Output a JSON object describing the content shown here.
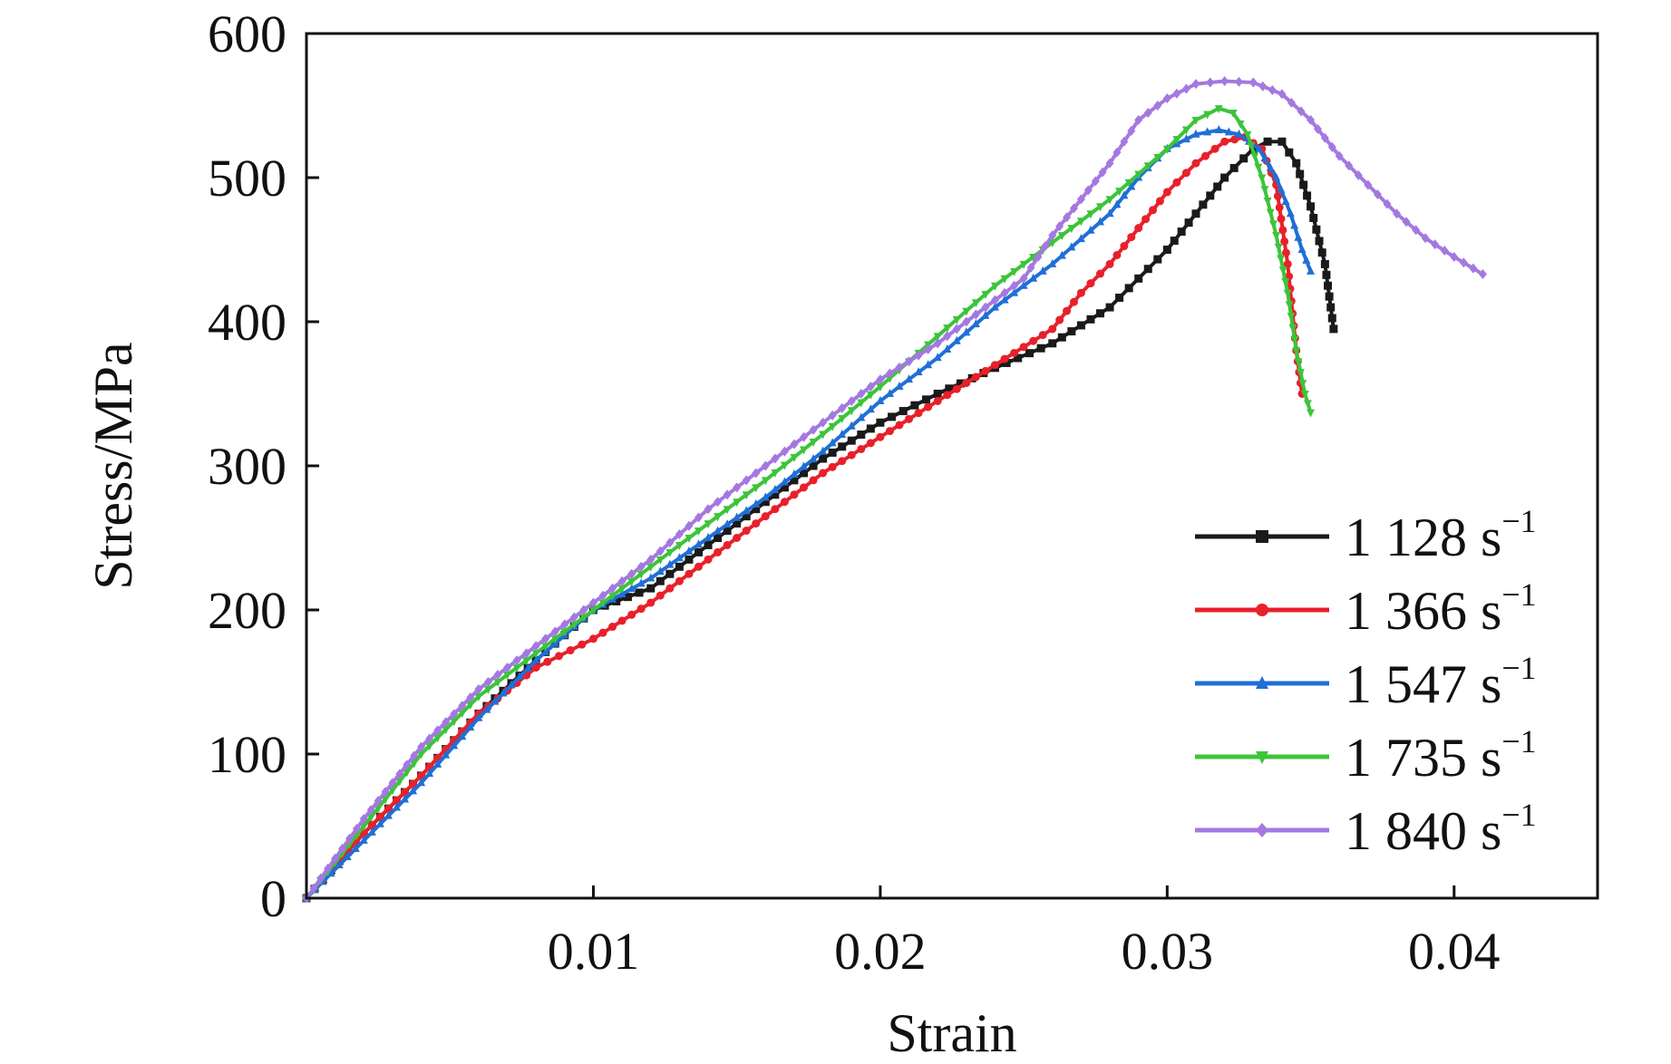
{
  "chart_data": {
    "type": "line",
    "title": "",
    "xlabel": "Strain",
    "ylabel": "Stress/MPa",
    "xlim": [
      0,
      0.045
    ],
    "ylim": [
      0,
      600
    ],
    "xticks": [
      0.01,
      0.02,
      0.03,
      0.04
    ],
    "xtick_labels": [
      "0.01",
      "0.02",
      "0.03",
      "0.04"
    ],
    "yticks": [
      0,
      100,
      200,
      300,
      400,
      500,
      600
    ],
    "ytick_labels": [
      "0",
      "100",
      "200",
      "300",
      "400",
      "500",
      "600"
    ],
    "grid": false,
    "legend_position": "bottom-right",
    "series": [
      {
        "name": "1 128 s⁻¹",
        "label_main": "1 128 s",
        "label_sup": "−1",
        "color": "#1a1a1a",
        "marker": "square",
        "x": [
          0,
          0.002,
          0.004,
          0.006,
          0.008,
          0.01,
          0.012,
          0.014,
          0.016,
          0.018,
          0.02,
          0.022,
          0.024,
          0.026,
          0.028,
          0.029,
          0.03,
          0.031,
          0.032,
          0.033,
          0.0335,
          0.034,
          0.0345,
          0.035,
          0.0355,
          0.0358
        ],
        "y": [
          0,
          45,
          85,
          128,
          165,
          200,
          215,
          245,
          275,
          305,
          330,
          350,
          368,
          385,
          410,
          430,
          450,
          475,
          500,
          520,
          525,
          525,
          510,
          480,
          440,
          395
        ]
      },
      {
        "name": "1 366 s⁻¹",
        "label_main": "1 366 s",
        "label_sup": "−1",
        "color": "#e8202a",
        "marker": "circle",
        "x": [
          0,
          0.002,
          0.004,
          0.006,
          0.008,
          0.01,
          0.012,
          0.014,
          0.016,
          0.018,
          0.02,
          0.022,
          0.024,
          0.026,
          0.027,
          0.028,
          0.029,
          0.03,
          0.031,
          0.032,
          0.0327,
          0.0333,
          0.0338,
          0.0342,
          0.0345,
          0.0347
        ],
        "y": [
          0,
          45,
          85,
          128,
          160,
          180,
          205,
          235,
          265,
          295,
          320,
          345,
          370,
          395,
          420,
          440,
          465,
          490,
          510,
          525,
          528,
          520,
          495,
          440,
          380,
          350
        ]
      },
      {
        "name": "1 547 s⁻¹",
        "label_main": "1 547 s",
        "label_sup": "−1",
        "color": "#1f6fd6",
        "marker": "triangle-up",
        "x": [
          0,
          0.002,
          0.004,
          0.006,
          0.008,
          0.01,
          0.012,
          0.014,
          0.016,
          0.018,
          0.02,
          0.022,
          0.024,
          0.026,
          0.028,
          0.029,
          0.03,
          0.031,
          0.0318,
          0.0325,
          0.0332,
          0.0338,
          0.0343,
          0.0347,
          0.035
        ],
        "y": [
          0,
          40,
          80,
          125,
          165,
          200,
          222,
          250,
          278,
          310,
          345,
          375,
          410,
          440,
          475,
          500,
          520,
          530,
          533,
          530,
          520,
          500,
          475,
          450,
          435
        ]
      },
      {
        "name": "1 735 s⁻¹",
        "label_main": "1 735 s",
        "label_sup": "−1",
        "color": "#3cc43a",
        "marker": "triangle-down",
        "x": [
          0,
          0.002,
          0.004,
          0.006,
          0.008,
          0.01,
          0.012,
          0.014,
          0.016,
          0.018,
          0.02,
          0.022,
          0.024,
          0.026,
          0.028,
          0.03,
          0.031,
          0.0318,
          0.0323,
          0.0328,
          0.0333,
          0.0338,
          0.0342,
          0.0345,
          0.0348,
          0.035
        ],
        "y": [
          0,
          50,
          100,
          140,
          170,
          200,
          230,
          260,
          290,
          322,
          355,
          390,
          425,
          455,
          485,
          520,
          540,
          548,
          545,
          530,
          500,
          460,
          420,
          380,
          350,
          337
        ]
      },
      {
        "name": "1 840 s⁻¹",
        "label_main": "1 840 s",
        "label_sup": "−1",
        "color": "#a478e0",
        "marker": "diamond",
        "x": [
          0,
          0.002,
          0.004,
          0.006,
          0.008,
          0.01,
          0.012,
          0.014,
          0.016,
          0.018,
          0.02,
          0.022,
          0.024,
          0.025,
          0.026,
          0.027,
          0.028,
          0.029,
          0.03,
          0.031,
          0.032,
          0.033,
          0.034,
          0.035,
          0.036,
          0.037,
          0.038,
          0.039,
          0.04,
          0.041
        ],
        "y": [
          0,
          55,
          105,
          145,
          175,
          205,
          235,
          270,
          300,
          330,
          360,
          385,
          415,
          430,
          460,
          485,
          510,
          540,
          555,
          565,
          567,
          566,
          558,
          540,
          515,
          495,
          475,
          458,
          445,
          433
        ]
      }
    ]
  }
}
